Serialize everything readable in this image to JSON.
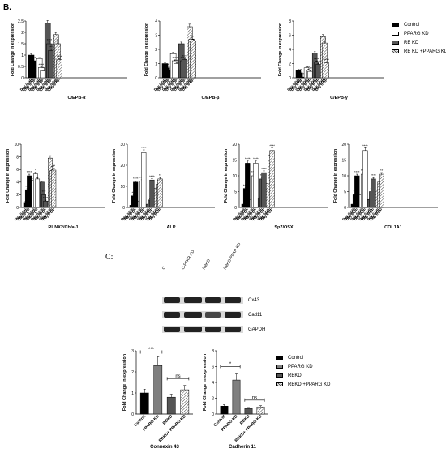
{
  "panel_b_label": "B.",
  "panel_c_label": "C:",
  "legend_b": [
    {
      "label": "Control",
      "color": "#000000",
      "pattern": "solid"
    },
    {
      "label": "PPARG KD",
      "color": "#ffffff",
      "pattern": "solid"
    },
    {
      "label": "RB KD",
      "color": "#555555",
      "pattern": "solid"
    },
    {
      "label": "RB KD +PPARG KD",
      "color": "#ffffff",
      "pattern": "hatch"
    }
  ],
  "legend_c": [
    {
      "label": "Control",
      "color": "#000000",
      "pattern": "solid"
    },
    {
      "label": "PPARG KD",
      "color": "#7f7f7f",
      "pattern": "solid"
    },
    {
      "label": "RBKD",
      "color": "#555555",
      "pattern": "solid"
    },
    {
      "label": "RBKD +PPARG KD",
      "color": "#bdbdbd",
      "pattern": "hatch"
    }
  ],
  "blot": {
    "lanes": [
      "C",
      "C-PPAR KD",
      "RBKD",
      "RBKD-PPAR KD"
    ],
    "bands": [
      "Cx43",
      "Cad11",
      "GAPDH"
    ]
  },
  "chart_data": [
    {
      "type": "bar",
      "id": "cebpa",
      "title": "",
      "xlabel": "C/EPB-α",
      "ylabel": "Fold Change in expression",
      "ylim": [
        0,
        2.5
      ],
      "yticks": [
        0,
        0.5,
        1.0,
        1.5,
        2.0,
        2.5
      ],
      "categories": [
        "Day 0 DP",
        "Day 4 DP",
        "Day 8 DP",
        "Day 0 DP",
        "Day 4 DP",
        "Day 8 DP",
        "Day 0 DP",
        "Day 4 DP",
        "Day 8 DP",
        "Day 0 DP",
        "Day 4 DP",
        "Day 8 DP"
      ],
      "groups": [
        "Control",
        "PPARG KD",
        "RB KD",
        "RB KD +PPARG KD"
      ],
      "values": [
        1.0,
        0.75,
        0.12,
        0.85,
        0.45,
        0.3,
        2.4,
        1.5,
        1.2,
        1.9,
        1.5,
        0.8
      ],
      "annotations": [
        "",
        "****",
        "****",
        "",
        "****",
        "****",
        "",
        "****",
        "****",
        "",
        "**",
        "****"
      ]
    },
    {
      "type": "bar",
      "id": "cebpb",
      "title": "",
      "xlabel": "C/EPB-β",
      "ylabel": "Fold Change in expression",
      "ylim": [
        0,
        4
      ],
      "yticks": [
        0,
        1,
        2,
        3,
        4
      ],
      "categories": [
        "Day 0 DP",
        "Day 4 DP",
        "Day 8 DP",
        "Day 0 DP",
        "Day 4 DP",
        "Day 8 DP",
        "Day 0 DP",
        "Day 4 DP",
        "Day 8 DP",
        "Day 0 DP",
        "Day 4 DP",
        "Day 8 DP"
      ],
      "groups": [
        "Control",
        "PPARG KD",
        "RB KD",
        "RB KD +PPARG KD"
      ],
      "values": [
        1.0,
        0.7,
        0.5,
        1.7,
        1.2,
        1.0,
        2.4,
        1.2,
        1.3,
        3.6,
        2.7,
        2.6
      ],
      "annotations": [
        "",
        "***",
        "****",
        "",
        "****",
        "****",
        "",
        "****",
        "****",
        "",
        "*",
        "*"
      ]
    },
    {
      "type": "bar",
      "id": "cebpg",
      "title": "",
      "xlabel": "C/EPB-γ",
      "ylabel": "Fold Change in expression",
      "ylim": [
        0,
        8
      ],
      "yticks": [
        0,
        2,
        4,
        6,
        8
      ],
      "categories": [
        "Day 0 DP",
        "Day 4 DP",
        "Day 8 DP",
        "Day 0 DP",
        "Day 4 DP",
        "Day 8 DP",
        "Day 0 DP",
        "Day 4 DP",
        "Day 8 DP",
        "Day 0 DP",
        "Day 4 DP",
        "Day 8 DP"
      ],
      "groups": [
        "Control",
        "PPARG KD",
        "RB KD",
        "RB KD +PPARG KD"
      ],
      "values": [
        1.0,
        0.7,
        0.1,
        1.4,
        1.1,
        0.9,
        3.5,
        2.2,
        1.9,
        5.8,
        4.9,
        2.1
      ],
      "annotations": [
        "",
        "***",
        "****",
        "",
        "**",
        "***",
        "",
        "****",
        "****",
        "",
        "**",
        "****"
      ]
    },
    {
      "type": "bar",
      "id": "runx2",
      "title": "",
      "xlabel": "RUNX2/Cbfa-1",
      "ylabel": "Fold Change in expression",
      "ylim": [
        0,
        10
      ],
      "yticks": [
        0,
        2,
        4,
        6,
        8,
        10
      ],
      "categories": [
        "Day 0 DP",
        "Day 4 DP",
        "Day 8 DP",
        "Day 0 DP",
        "Day 4 DP",
        "Day 8 DP",
        "Day 0 DP",
        "Day 4 DP",
        "Day 8 DP",
        "Day 0 DP",
        "Day 4 DP",
        "Day 8 DP"
      ],
      "groups": [
        "Control",
        "PPARG KD",
        "RB KD",
        "RB KD +PPARG KD"
      ],
      "values": [
        0.8,
        2.8,
        5.0,
        4.3,
        5.3,
        4.5,
        4.0,
        2.0,
        1.0,
        7.8,
        5.8,
        5.9
      ],
      "annotations": [
        "",
        "***",
        "****",
        "",
        "*",
        "",
        "",
        "***",
        "****",
        "",
        "**",
        "**"
      ]
    },
    {
      "type": "bar",
      "id": "alp",
      "title": "",
      "xlabel": "ALP",
      "ylabel": "Fold Change in expression",
      "ylim": [
        0,
        30
      ],
      "yticks": [
        0,
        10,
        20,
        30
      ],
      "categories": [
        "Day 0 DP",
        "Day 4 DP",
        "Day 8 DP",
        "Day 0 DP",
        "Day 4 DP",
        "Day 8 DP",
        "Day 0 DP",
        "Day 4 DP",
        "Day 8 DP",
        "Day 0 DP",
        "Day 4 DP",
        "Day 8 DP"
      ],
      "groups": [
        "Control",
        "PPARG KD",
        "RB KD",
        "RB KD +PPARG KD"
      ],
      "values": [
        1.0,
        5.5,
        12.0,
        3.0,
        12.5,
        26.0,
        1.5,
        3.5,
        13.0,
        9.0,
        11.0,
        13.5
      ],
      "annotations": [
        "",
        "***",
        "****",
        "",
        "****",
        "****",
        "",
        "*",
        "****",
        "",
        "**",
        "**"
      ]
    },
    {
      "type": "bar",
      "id": "sp7",
      "title": "",
      "xlabel": "Sp7/OSX",
      "ylabel": "Fold Change in expression",
      "ylim": [
        0,
        20
      ],
      "yticks": [
        0,
        5,
        10,
        15,
        20
      ],
      "categories": [
        "Day 0 DP",
        "Day 4 DP",
        "Day 8 DP",
        "Day 0 DP",
        "Day 4 DP",
        "Day 8 DP",
        "Day 0 DP",
        "Day 4 DP",
        "Day 8 DP",
        "Day 0 DP",
        "Day 4 DP",
        "Day 8 DP"
      ],
      "groups": [
        "Control",
        "PPARG KD",
        "RB KD",
        "RB KD +PPARG KD"
      ],
      "values": [
        1.0,
        6.0,
        14.0,
        2.5,
        10.0,
        14.0,
        3.0,
        9.0,
        11.0,
        7.5,
        15.0,
        18.0
      ],
      "annotations": [
        "",
        "****",
        "****",
        "",
        "****",
        "****",
        "",
        "***",
        "****",
        "",
        "****",
        "****"
      ]
    },
    {
      "type": "bar",
      "id": "col1a1",
      "title": "",
      "xlabel": "COL1A1",
      "ylabel": "Fold Change in expression",
      "ylim": [
        0,
        20
      ],
      "yticks": [
        0,
        5,
        10,
        15,
        20
      ],
      "categories": [
        "Day 0 DP",
        "Day 4 DP",
        "Day 8 DP",
        "Day 0 DP",
        "Day 4 DP",
        "Day 8 DP",
        "Day 0 DP",
        "Day 4 DP",
        "Day 8 DP",
        "Day 0 DP",
        "Day 4 DP",
        "Day 8 DP"
      ],
      "groups": [
        "Control",
        "PPARG KD",
        "RB KD",
        "RB KD +PPARG KD"
      ],
      "values": [
        1.0,
        4.0,
        10.0,
        4.0,
        10.5,
        18.0,
        2.5,
        5.0,
        9.0,
        5.5,
        8.0,
        10.5
      ],
      "annotations": [
        "",
        "***",
        "****",
        "",
        "****",
        "****",
        "",
        "**",
        "****",
        "",
        "*",
        "**"
      ]
    },
    {
      "type": "bar",
      "id": "cx43",
      "title": "",
      "xlabel": "Connexin 43",
      "ylabel": "Fold Change in expression",
      "ylim": [
        0,
        3
      ],
      "yticks": [
        0,
        1,
        2,
        3
      ],
      "categories": [
        "Control",
        "PPARG KD",
        "RBKD",
        "RBKD+ PPARG KD"
      ],
      "values": [
        1.0,
        2.3,
        0.8,
        1.15
      ],
      "brackets": [
        {
          "from": 0,
          "to": 1,
          "text": "***"
        },
        {
          "from": 2,
          "to": 3,
          "text": "ns"
        }
      ]
    },
    {
      "type": "bar",
      "id": "cad11",
      "title": "",
      "xlabel": "Cadherin 11",
      "ylabel": "Fold Change in expression",
      "ylim": [
        0,
        8
      ],
      "yticks": [
        0,
        2,
        4,
        6,
        8
      ],
      "categories": [
        "Control",
        "PPARG KD",
        "RBKD",
        "RBKD+ PPARG KD"
      ],
      "values": [
        1.0,
        4.3,
        0.7,
        0.9
      ],
      "brackets": [
        {
          "from": 0,
          "to": 1,
          "text": "*"
        },
        {
          "from": 2,
          "to": 3,
          "text": "ns"
        }
      ]
    }
  ]
}
